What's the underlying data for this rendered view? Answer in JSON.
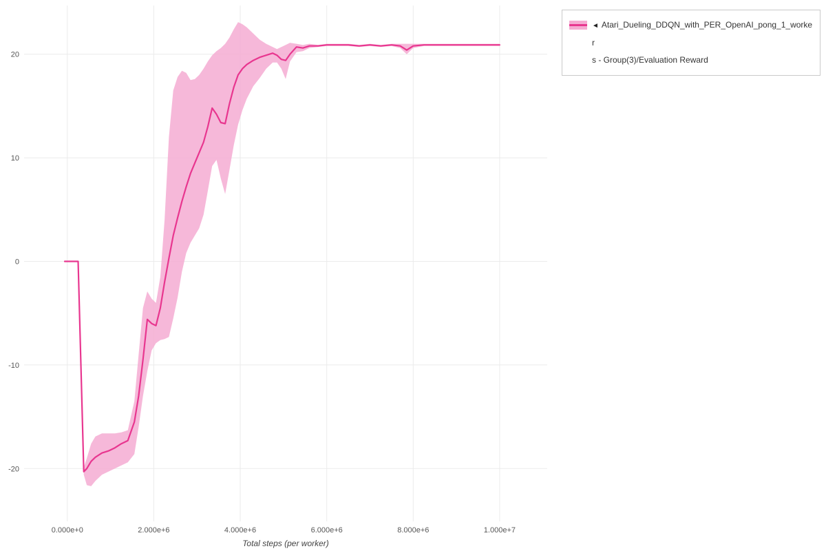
{
  "chart_data": {
    "type": "line",
    "title": "",
    "xlabel": "Total steps (per worker)",
    "ylabel": "",
    "xlim": [
      -1000000,
      11100000
    ],
    "ylim": [
      -25.1,
      24.7
    ],
    "grid": true,
    "legend_position": "top-right",
    "x_ticks": {
      "values": [
        0,
        2000000,
        4000000,
        6000000,
        8000000,
        10000000
      ],
      "labels": [
        "0.000e+0",
        "2.000e+6",
        "4.000e+6",
        "6.000e+6",
        "8.000e+6",
        "1.000e+7"
      ]
    },
    "y_ticks": {
      "values": [
        -20,
        -10,
        0,
        10,
        20
      ],
      "labels": [
        "-20",
        "-10",
        "0",
        "10",
        "20"
      ]
    },
    "series": [
      {
        "name": "Atari_Dueling_DDQN_with_PER_OpenAI_pong_1_workers - Group(3)/Evaluation Reward",
        "line_color": "#e8368f",
        "band_color": "#f5abd2",
        "x": [
          -60000,
          250000,
          380000,
          450000,
          550000,
          650000,
          800000,
          950000,
          1100000,
          1250000,
          1400000,
          1550000,
          1650000,
          1750000,
          1850000,
          1950000,
          2050000,
          2150000,
          2250000,
          2350000,
          2450000,
          2550000,
          2650000,
          2750000,
          2850000,
          2950000,
          3050000,
          3150000,
          3250000,
          3350000,
          3450000,
          3550000,
          3650000,
          3750000,
          3850000,
          3950000,
          4050000,
          4150000,
          4300000,
          4450000,
          4600000,
          4750000,
          4850000,
          4950000,
          5050000,
          5150000,
          5300000,
          5450000,
          5600000,
          5800000,
          6000000,
          6250000,
          6500000,
          6750000,
          7000000,
          7250000,
          7500000,
          7700000,
          7850000,
          8000000,
          8250000,
          8500000,
          8750000,
          9000000,
          9250000,
          9500000,
          9750000,
          10000000
        ],
        "mean": [
          0,
          0,
          -20.3,
          -20.0,
          -19.3,
          -18.9,
          -18.5,
          -18.3,
          -18.0,
          -17.6,
          -17.3,
          -15.5,
          -13.0,
          -9.5,
          -5.6,
          -6.0,
          -6.2,
          -4.5,
          -2.0,
          0.3,
          2.5,
          4.2,
          5.8,
          7.2,
          8.5,
          9.5,
          10.5,
          11.5,
          13.0,
          14.8,
          14.2,
          13.4,
          13.3,
          15.2,
          16.8,
          18.0,
          18.6,
          19.0,
          19.4,
          19.7,
          19.9,
          20.1,
          19.9,
          19.5,
          19.4,
          20.0,
          20.7,
          20.6,
          20.8,
          20.8,
          20.9,
          20.9,
          20.9,
          20.8,
          20.9,
          20.8,
          20.9,
          20.8,
          20.4,
          20.8,
          20.9,
          20.9,
          20.9,
          20.9,
          20.9,
          20.9,
          20.9,
          20.9
        ],
        "lower": [
          0,
          0,
          -20.6,
          -21.6,
          -21.7,
          -21.2,
          -20.6,
          -20.3,
          -20.0,
          -19.7,
          -19.4,
          -18.6,
          -16.0,
          -13.0,
          -10.6,
          -8.6,
          -7.9,
          -7.6,
          -7.5,
          -7.3,
          -5.5,
          -3.5,
          -1.0,
          0.8,
          1.8,
          2.5,
          3.2,
          4.5,
          6.8,
          9.2,
          9.8,
          8.0,
          6.5,
          8.8,
          11.2,
          13.2,
          14.6,
          15.7,
          16.9,
          17.7,
          18.6,
          19.2,
          19.2,
          18.6,
          17.6,
          19.3,
          20.2,
          20.3,
          20.6,
          20.7,
          20.8,
          20.8,
          20.8,
          20.7,
          20.8,
          20.7,
          20.8,
          20.6,
          20.0,
          20.6,
          20.8,
          20.8,
          20.8,
          20.8,
          20.8,
          20.8,
          20.8,
          20.8
        ],
        "upper": [
          0,
          0,
          -19.9,
          -19.0,
          -17.6,
          -16.9,
          -16.6,
          -16.6,
          -16.6,
          -16.5,
          -16.3,
          -13.5,
          -9.0,
          -4.5,
          -2.9,
          -3.6,
          -4.0,
          -1.5,
          4.0,
          12.0,
          16.5,
          17.8,
          18.4,
          18.2,
          17.5,
          17.6,
          18.0,
          18.6,
          19.3,
          19.9,
          20.3,
          20.6,
          21.0,
          21.6,
          22.4,
          23.1,
          22.9,
          22.6,
          22.0,
          21.4,
          21.0,
          20.7,
          20.5,
          20.7,
          20.9,
          21.1,
          21.0,
          20.9,
          21.0,
          20.9,
          21.0,
          21.0,
          21.0,
          20.9,
          21.0,
          20.9,
          21.0,
          21.0,
          21.0,
          21.0,
          21.0,
          21.0,
          21.0,
          21.0,
          21.0,
          21.0,
          21.0,
          21.0
        ]
      }
    ]
  },
  "legend": {
    "collapse_icon": "◄",
    "label_line1": "Atari_Dueling_DDQN_with_PER_OpenAI_pong_1_worker",
    "label_line2": "s - Group(3)/Evaluation Reward"
  },
  "axes": {
    "x_title": "Total steps (per worker)"
  }
}
